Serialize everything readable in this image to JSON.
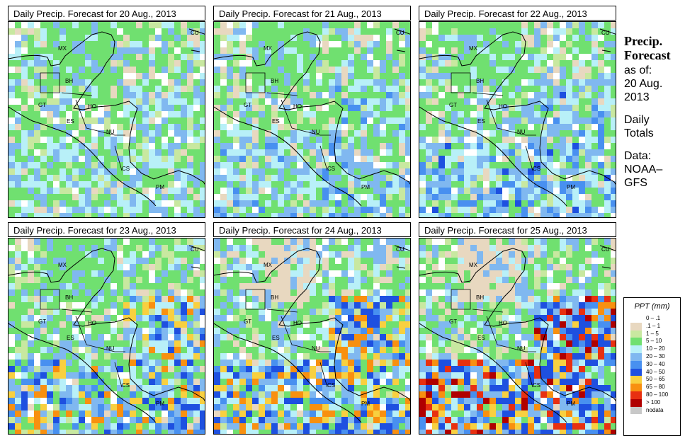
{
  "panels": [
    {
      "title": "Daily Precip. Forecast for  20 Aug., 2013",
      "intensity": 0
    },
    {
      "title": "Daily Precip. Forecast for  21 Aug., 2013",
      "intensity": 1
    },
    {
      "title": "Daily Precip. Forecast for  22 Aug., 2013",
      "intensity": 2
    },
    {
      "title": "Daily Precip. Forecast for  23 Aug., 2013",
      "intensity": 3
    },
    {
      "title": "Daily Precip. Forecast for  24 Aug., 2013",
      "intensity": 4
    },
    {
      "title": "Daily Precip. Forecast for  25 Aug., 2013",
      "intensity": 5
    }
  ],
  "country_labels": [
    "MX",
    "BH",
    "GT",
    "HO",
    "ES",
    "NU",
    "CS",
    "PM",
    "CU"
  ],
  "sidebar": {
    "heading_line1": "Precip.",
    "heading_line2": "Forecast",
    "asof_line1": "as of:",
    "asof_line2": "20 Aug.",
    "asof_line3": "2013",
    "totals_line1": "Daily",
    "totals_line2": "Totals",
    "data_line1": "Data:",
    "data_line2": "NOAA–",
    "data_line3": "GFS"
  },
  "legend": {
    "title": "PPT (mm)",
    "items": [
      {
        "label": "0 – .1",
        "color": "#ffffff"
      },
      {
        "label": ".1 – 1",
        "color": "#e8d8c0"
      },
      {
        "label": "1 – 5",
        "color": "#c8e8a0"
      },
      {
        "label": "5 – 10",
        "color": "#70e070"
      },
      {
        "label": "10 – 20",
        "color": "#b8f0f8"
      },
      {
        "label": "20 – 30",
        "color": "#80b8f0"
      },
      {
        "label": "30 – 40",
        "color": "#4890f0"
      },
      {
        "label": "40 – 50",
        "color": "#1e50e0"
      },
      {
        "label": "50 – 65",
        "color": "#f8d040"
      },
      {
        "label": "65 – 80",
        "color": "#f89010"
      },
      {
        "label": "80 – 100",
        "color": "#e83010"
      },
      {
        "label": "> 100",
        "color": "#b00000"
      },
      {
        "label": "nodata",
        "color": "#c8c8c8"
      }
    ]
  }
}
